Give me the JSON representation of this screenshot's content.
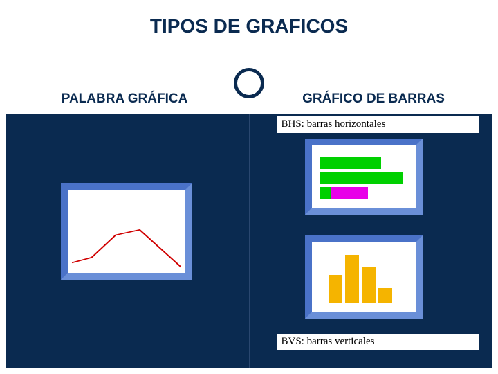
{
  "slide": {
    "title": "TIPOS DE GRAFICOS",
    "title_color": "#0a2a50",
    "background": "#ffffff",
    "panel_background": "#0a2a50",
    "ring_border": "#0a2a50"
  },
  "columns": {
    "left": {
      "heading": "PALABRA GRÁFICA"
    },
    "right": {
      "heading": "GRÁFICO DE BARRAS"
    }
  },
  "captions": {
    "bhs": "BHS: barras horizontales",
    "bvs": "BVS: barras verticales"
  },
  "mini_frame": {
    "border_light": "#6a8fd8",
    "border_dark": "#4a72c8",
    "fill": "#ffffff"
  },
  "line_chart": {
    "type": "line",
    "stroke": "#d00000",
    "stroke_width": 1.5,
    "points_x": [
      0,
      18,
      40,
      62,
      100
    ],
    "points_y": [
      92,
      85,
      55,
      48,
      98
    ],
    "xlim": [
      0,
      100
    ],
    "ylim": [
      0,
      100
    ]
  },
  "hbar_chart": {
    "type": "bar-horizontal",
    "bars": [
      {
        "top": 2,
        "width_pct": 70,
        "color": "#00d000"
      },
      {
        "top": 24,
        "width_pct": 95,
        "color": "#00d000"
      },
      {
        "top": 46,
        "width_pct": 55,
        "color": "#e800e8"
      },
      {
        "top": 46,
        "width_pct": 12,
        "color": "#00d000"
      }
    ]
  },
  "vbar_chart": {
    "type": "bar-vertical",
    "bar_color": "#f5b400",
    "bars": [
      {
        "left": 8,
        "height_pct": 55
      },
      {
        "left": 32,
        "height_pct": 95
      },
      {
        "left": 56,
        "height_pct": 70
      },
      {
        "left": 80,
        "height_pct": 30
      }
    ]
  }
}
